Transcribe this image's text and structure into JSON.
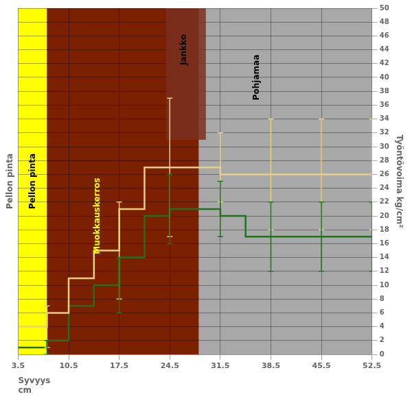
{
  "chart_data": {
    "type": "line",
    "xlabel": [
      "Syvyys",
      "cm"
    ],
    "ylabel": "Työntövoima kg/cm²",
    "ylabel_left": "Pellon pinta",
    "xlim": [
      3.5,
      52.5
    ],
    "ylim": [
      0,
      50
    ],
    "xticks": [
      3.5,
      10.5,
      17.5,
      24.5,
      31.5,
      38.5,
      45.5,
      52.5
    ],
    "yticks": [
      0,
      2,
      4,
      6,
      8,
      10,
      12,
      14,
      16,
      18,
      20,
      22,
      24,
      26,
      28,
      30,
      32,
      34,
      36,
      38,
      40,
      42,
      44,
      46,
      48,
      50
    ],
    "grid": true,
    "series": [
      {
        "color": "#E8D080",
        "x": [
          3.5,
          7.5,
          7.5,
          10.5,
          10.5,
          14.0,
          14.0,
          17.5,
          17.5,
          21.0,
          21.0,
          24.5,
          24.5,
          28.5,
          28.5,
          31.5,
          31.5,
          38.5,
          38.5,
          45.5,
          45.5,
          52.5
        ],
        "values": [
          4,
          4,
          6,
          6,
          11,
          11,
          15,
          15,
          21,
          21,
          27,
          27,
          27,
          27,
          27,
          27,
          26,
          26,
          26,
          26,
          26,
          26
        ],
        "error_bars": {
          "x": [
            7.5,
            17.5,
            24.5,
            31.5,
            38.5,
            45.5,
            52.5
          ],
          "y": [
            4,
            15,
            27,
            27,
            26,
            26,
            26
          ],
          "minus": [
            3,
            7,
            10,
            5,
            8,
            8,
            8
          ],
          "plus": [
            3,
            7,
            10,
            5,
            8,
            8,
            8
          ]
        }
      },
      {
        "color": "#207020",
        "x": [
          3.5,
          7.5,
          7.5,
          10.5,
          10.5,
          14.0,
          14.0,
          17.5,
          17.5,
          21.0,
          21.0,
          24.5,
          24.5,
          28.5,
          28.5,
          31.5,
          31.5,
          35.0,
          35.0,
          38.5,
          38.5,
          52.5
        ],
        "values": [
          1,
          1,
          2,
          2,
          7,
          7,
          10,
          10,
          14,
          14,
          20,
          20,
          21,
          21,
          21,
          21,
          20,
          20,
          17,
          17,
          17,
          17
        ],
        "error_bars": {
          "x": [
            7.5,
            17.5,
            24.5,
            31.5,
            38.5,
            45.5,
            52.5
          ],
          "y": [
            1,
            10,
            21,
            21,
            17,
            17,
            17
          ],
          "minus": [
            1,
            4,
            5,
            4,
            5,
            5,
            5
          ],
          "plus": [
            1,
            4,
            5,
            4,
            5,
            5,
            5
          ]
        }
      }
    ],
    "zones": [
      {
        "x": [
          3.5,
          52.5
        ],
        "color": "#A8A8A8"
      },
      {
        "x": [
          3.5,
          7.5
        ],
        "color": "#FFFF00"
      },
      {
        "x": [
          7.5,
          28.5
        ],
        "color": "#7B2000"
      }
    ],
    "boxes": [
      {
        "x": [
          24.0,
          29.5
        ],
        "y": [
          31,
          50
        ],
        "color": "#7B3020"
      }
    ],
    "annotations": [
      {
        "text": "Pellon pinta",
        "x": 5.5,
        "y": 25,
        "color": "#000000"
      },
      {
        "text": "Muokkauskerros",
        "x": 14.5,
        "y": 20,
        "color": "#FFFF00"
      },
      {
        "text": "Jankko",
        "x": 26.5,
        "y": 44,
        "color": "#000000"
      },
      {
        "text": "Pohjamaa",
        "x": 36.5,
        "y": 40,
        "color": "#000000"
      }
    ]
  }
}
